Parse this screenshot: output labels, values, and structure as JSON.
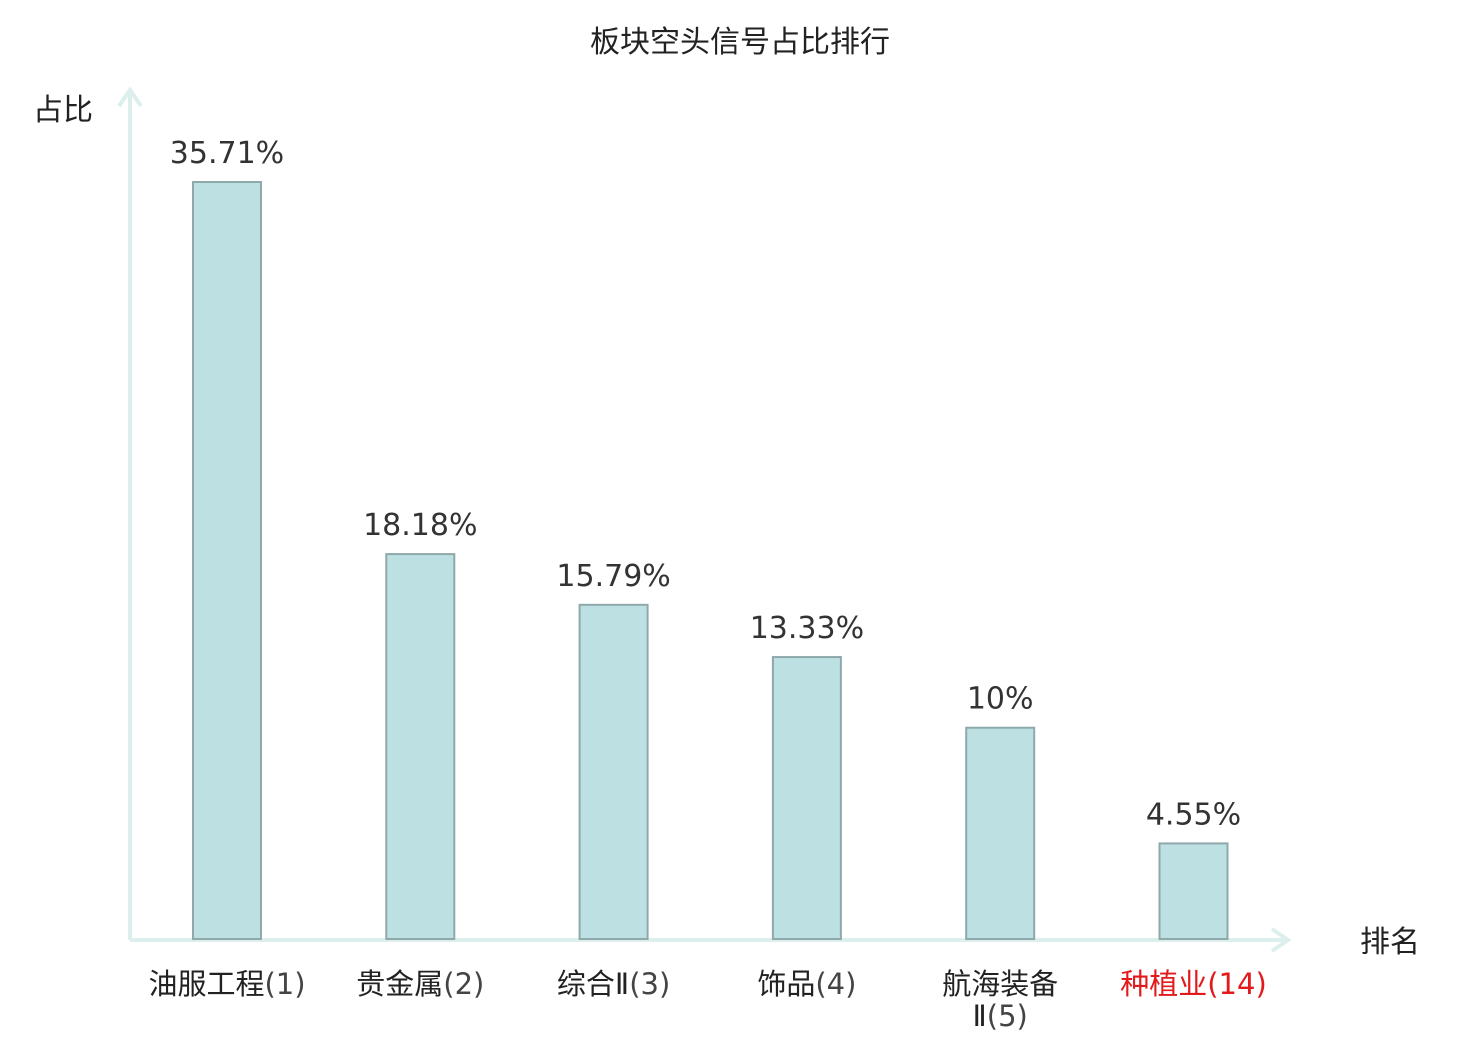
{
  "chart_data": {
    "type": "bar",
    "title": "板块空头信号占比排行",
    "xlabel": "排名",
    "ylabel": "占比",
    "ylim": [
      0,
      40
    ],
    "grid": false,
    "categories": [
      {
        "name": "油服工程",
        "rank": "(1)",
        "highlight": false
      },
      {
        "name": "贵金属",
        "rank": "(2)",
        "highlight": false
      },
      {
        "name": "综合Ⅱ",
        "rank": "(3)",
        "highlight": false
      },
      {
        "name": "饰品",
        "rank": "(4)",
        "highlight": false
      },
      {
        "name": "航海装备Ⅱ",
        "rank": "(5)",
        "highlight": false
      },
      {
        "name": "种植业",
        "rank": "(14)",
        "highlight": true
      }
    ],
    "values": [
      35.71,
      18.18,
      15.79,
      13.33,
      10,
      4.55
    ],
    "value_labels": [
      "35.71%",
      "18.18%",
      "15.79%",
      "13.33%",
      "10%",
      "4.55%"
    ]
  },
  "colors": {
    "bar_fill": "#bde0e3",
    "bar_stroke": "#8fa9ab",
    "axis": "#dcefed",
    "highlight_text": "#e31a1c",
    "text": "#222222",
    "value_text": "#333333",
    "rank_text": "#444444"
  }
}
